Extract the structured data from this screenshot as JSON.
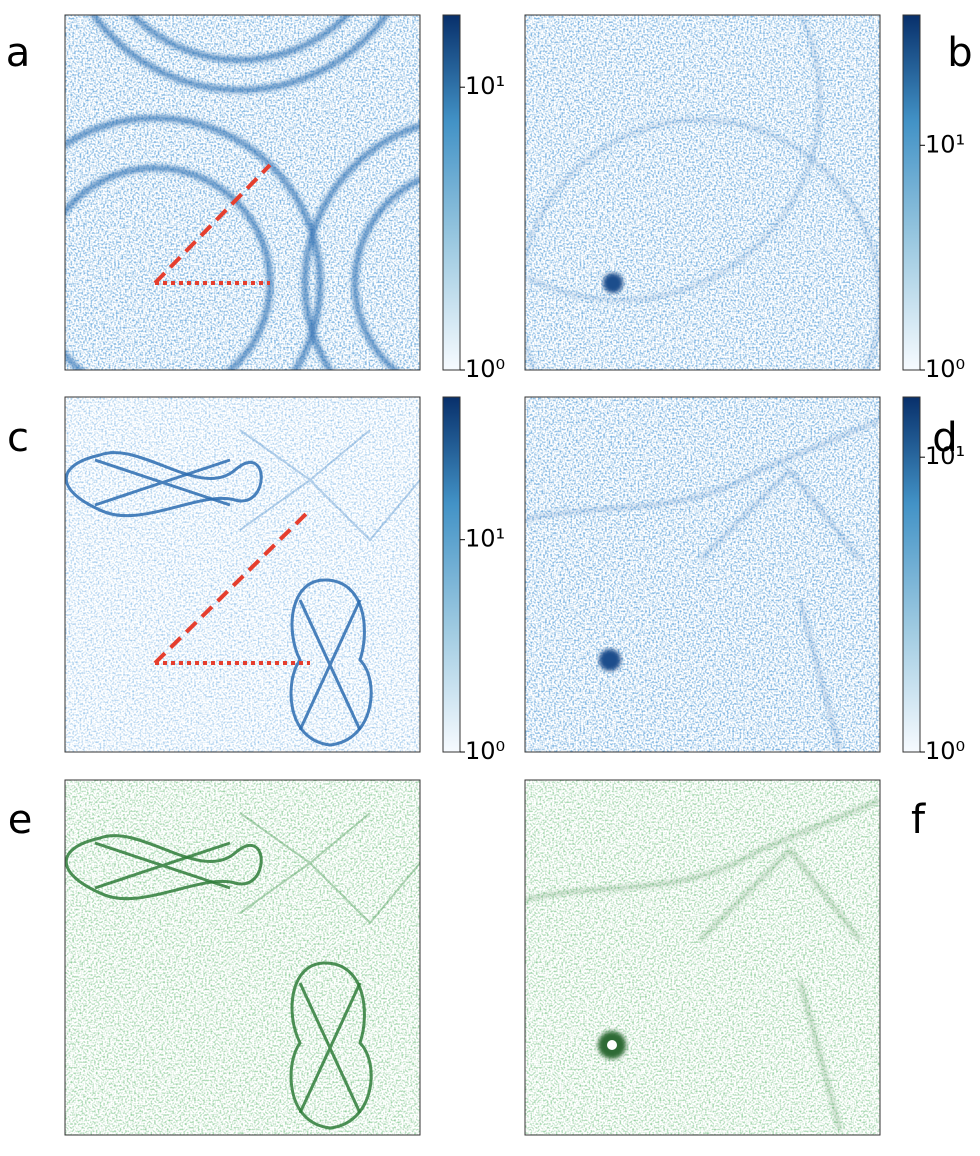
{
  "panels": [
    {
      "label": "a",
      "colorbar": {
        "lim": [
          1,
          18
        ],
        "log": true,
        "ticks": [
          {
            "value": 1,
            "label": "10⁰"
          },
          {
            "value": 10,
            "label": "10¹"
          }
        ]
      }
    },
    {
      "label": "b",
      "colorbar": {
        "lim": [
          1,
          38
        ],
        "log": true,
        "ticks": [
          {
            "value": 1,
            "label": "10⁰"
          },
          {
            "value": 10,
            "label": "10¹"
          }
        ]
      }
    },
    {
      "label": "c",
      "colorbar": {
        "lim": [
          1,
          47
        ],
        "log": true,
        "ticks": [
          {
            "value": 1,
            "label": "10⁰"
          },
          {
            "value": 10,
            "label": "10¹"
          }
        ]
      }
    },
    {
      "label": "d",
      "colorbar": {
        "lim": [
          1,
          16
        ],
        "log": true,
        "ticks": [
          {
            "value": 1,
            "label": "10⁰"
          },
          {
            "value": 10,
            "label": "10¹"
          }
        ]
      }
    },
    {
      "label": "e"
    },
    {
      "label": "f"
    }
  ]
}
